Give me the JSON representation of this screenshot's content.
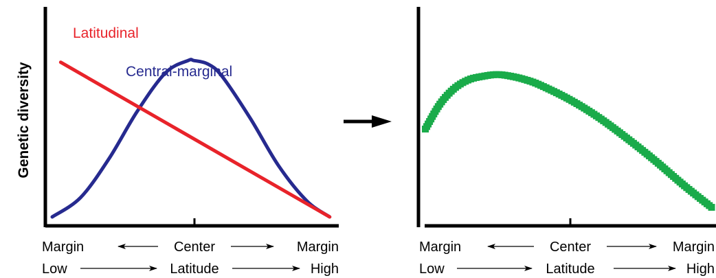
{
  "ylabel": "Genetic diversity",
  "chart_data": [
    {
      "type": "line",
      "title": "",
      "ylabel": "Genetic diversity",
      "xlim": [
        0,
        1
      ],
      "ylim": [
        0,
        1
      ],
      "x_axis_rows": [
        {
          "left": "Margin",
          "center": "Center",
          "right": "Margin"
        },
        {
          "left": "Low",
          "center": "Latitude",
          "right": "High"
        }
      ],
      "series": [
        {
          "name": "Latitudinal",
          "color": "#e8232a",
          "x": [
            0.03,
            0.98
          ],
          "y": [
            0.88,
            0.0
          ]
        },
        {
          "name": "Central-marginal",
          "color": "#262a8f",
          "x": [
            0.0,
            0.1,
            0.2,
            0.3,
            0.4,
            0.48,
            0.5,
            0.55,
            0.6,
            0.7,
            0.8,
            0.9,
            0.98
          ],
          "y": [
            0.0,
            0.11,
            0.33,
            0.6,
            0.82,
            0.89,
            0.89,
            0.87,
            0.8,
            0.56,
            0.29,
            0.09,
            0.0
          ]
        }
      ]
    },
    {
      "type": "scatter",
      "title": "",
      "xlim": [
        0,
        1
      ],
      "ylim": [
        0,
        1
      ],
      "x_axis_rows": [
        {
          "left": "Margin",
          "center": "Center",
          "right": "Margin"
        },
        {
          "left": "Low",
          "center": "Latitude",
          "right": "High"
        }
      ],
      "series": [
        {
          "color": "#1aab4a",
          "x": [
            0.0,
            0.05,
            0.1,
            0.15,
            0.2,
            0.25,
            0.3,
            0.35,
            0.4,
            0.5,
            0.6,
            0.7,
            0.8,
            0.9,
            1.0
          ],
          "y": [
            0.5,
            0.64,
            0.73,
            0.78,
            0.8,
            0.81,
            0.8,
            0.78,
            0.75,
            0.67,
            0.57,
            0.45,
            0.32,
            0.18,
            0.05
          ]
        }
      ]
    }
  ],
  "arrow_icon": "right-arrow-icon"
}
